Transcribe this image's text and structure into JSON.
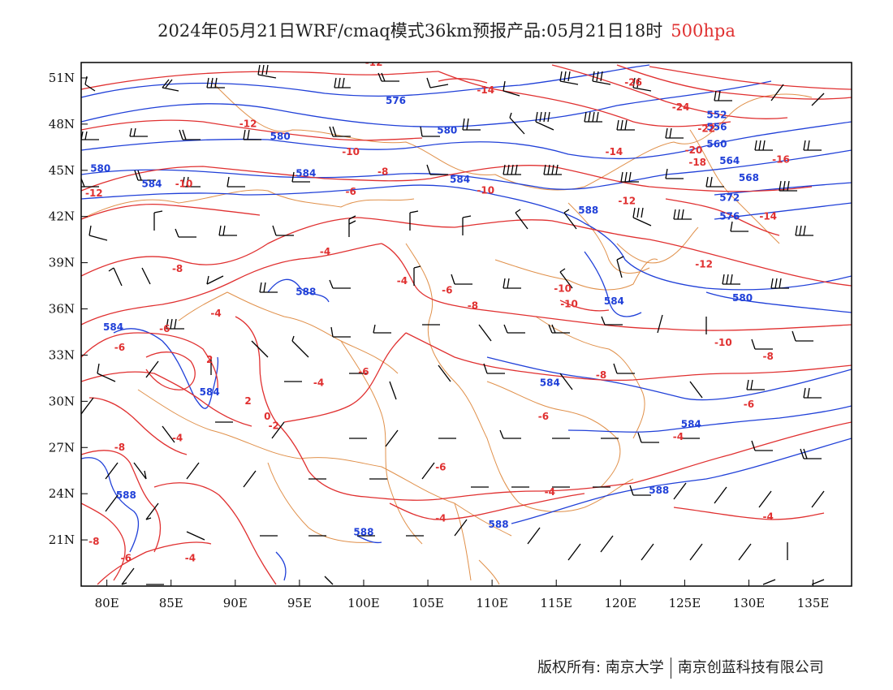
{
  "title": {
    "main": "2024年05月21日WRF/cmaq模式36km预报产品:05月21日18时",
    "level": "500hpa"
  },
  "colors": {
    "height_contour": "#2040d8",
    "temp_contour": "#e03030",
    "borders": "#e0904a",
    "wind_barb": "#000000"
  },
  "axes": {
    "x_ticks": [
      "80E",
      "85E",
      "90E",
      "95E",
      "100E",
      "105E",
      "110E",
      "115E",
      "120E",
      "125E",
      "130E",
      "135E"
    ],
    "y_ticks": [
      "51N",
      "48N",
      "45N",
      "42N",
      "39N",
      "36N",
      "33N",
      "30N",
      "27N",
      "24N",
      "21N"
    ],
    "lon_range": [
      78,
      138
    ],
    "lat_range": [
      18,
      52
    ]
  },
  "height_labels": [
    {
      "text": "576",
      "lon": 102.5,
      "lat": 49.3
    },
    {
      "text": "580",
      "lon": 106.5,
      "lat": 47.4
    },
    {
      "text": "580",
      "lon": 93.5,
      "lat": 47.0
    },
    {
      "text": "580",
      "lon": 79.5,
      "lat": 44.9
    },
    {
      "text": "584",
      "lon": 83.5,
      "lat": 43.9
    },
    {
      "text": "584",
      "lon": 95.5,
      "lat": 44.6
    },
    {
      "text": "584",
      "lon": 107.5,
      "lat": 44.2
    },
    {
      "text": "588",
      "lon": 95.5,
      "lat": 36.9
    },
    {
      "text": "584",
      "lon": 80.5,
      "lat": 34.6
    },
    {
      "text": "584",
      "lon": 88.0,
      "lat": 30.4
    },
    {
      "text": "588",
      "lon": 117.5,
      "lat": 42.2
    },
    {
      "text": "584",
      "lon": 119.5,
      "lat": 36.3
    },
    {
      "text": "584",
      "lon": 114.5,
      "lat": 31.0
    },
    {
      "text": "584",
      "lon": 125.5,
      "lat": 28.3
    },
    {
      "text": "588",
      "lon": 81.5,
      "lat": 23.7
    },
    {
      "text": "588",
      "lon": 100.0,
      "lat": 21.3
    },
    {
      "text": "588",
      "lon": 110.5,
      "lat": 21.8
    },
    {
      "text": "588",
      "lon": 123.0,
      "lat": 24.0
    },
    {
      "text": "580",
      "lon": 129.5,
      "lat": 36.5
    },
    {
      "text": "576",
      "lon": 128.5,
      "lat": 41.8
    },
    {
      "text": "572",
      "lon": 128.5,
      "lat": 43.0
    },
    {
      "text": "568",
      "lon": 130.0,
      "lat": 44.3
    },
    {
      "text": "564",
      "lon": 128.5,
      "lat": 45.4
    },
    {
      "text": "560",
      "lon": 127.5,
      "lat": 46.5
    },
    {
      "text": "556",
      "lon": 127.5,
      "lat": 47.6
    },
    {
      "text": "552",
      "lon": 127.5,
      "lat": 48.4
    }
  ],
  "temp_labels": [
    {
      "text": "-12",
      "lon": 100.8,
      "lat": 51.8
    },
    {
      "text": "-14",
      "lon": 109.5,
      "lat": 50.0
    },
    {
      "text": "-26",
      "lon": 121.0,
      "lat": 50.5
    },
    {
      "text": "-24",
      "lon": 124.7,
      "lat": 48.9
    },
    {
      "text": "-22",
      "lon": 126.7,
      "lat": 47.5
    },
    {
      "text": "-20",
      "lon": 125.7,
      "lat": 46.1
    },
    {
      "text": "-18",
      "lon": 126.0,
      "lat": 45.3
    },
    {
      "text": "-16",
      "lon": 132.5,
      "lat": 45.5
    },
    {
      "text": "-14",
      "lon": 119.5,
      "lat": 46.0
    },
    {
      "text": "-12",
      "lon": 91.0,
      "lat": 47.8
    },
    {
      "text": "-10",
      "lon": 99.0,
      "lat": 46.0
    },
    {
      "text": "-8",
      "lon": 101.5,
      "lat": 44.7
    },
    {
      "text": "-10",
      "lon": 86.0,
      "lat": 43.9
    },
    {
      "text": "-6",
      "lon": 99.0,
      "lat": 43.4
    },
    {
      "text": "-12",
      "lon": 79.0,
      "lat": 43.3
    },
    {
      "text": "-10",
      "lon": 109.5,
      "lat": 43.5
    },
    {
      "text": "-12",
      "lon": 120.5,
      "lat": 42.8
    },
    {
      "text": "-14",
      "lon": 131.5,
      "lat": 41.8
    },
    {
      "text": "-12",
      "lon": 126.5,
      "lat": 38.7
    },
    {
      "text": "-8",
      "lon": 85.5,
      "lat": 38.4
    },
    {
      "text": "-4",
      "lon": 97.0,
      "lat": 39.5
    },
    {
      "text": "-4",
      "lon": 103.0,
      "lat": 37.6
    },
    {
      "text": "-6",
      "lon": 106.5,
      "lat": 37.0
    },
    {
      "text": "-8",
      "lon": 108.5,
      "lat": 36.0
    },
    {
      "text": "-10",
      "lon": 115.5,
      "lat": 37.1
    },
    {
      "text": "-10",
      "lon": 116.0,
      "lat": 36.1
    },
    {
      "text": "-4",
      "lon": 88.5,
      "lat": 35.5
    },
    {
      "text": "-6",
      "lon": 84.5,
      "lat": 34.5
    },
    {
      "text": "-6",
      "lon": 81.0,
      "lat": 33.3
    },
    {
      "text": "2",
      "lon": 88.0,
      "lat": 32.5
    },
    {
      "text": "-10",
      "lon": 128.0,
      "lat": 33.6
    },
    {
      "text": "-8",
      "lon": 131.5,
      "lat": 32.7
    },
    {
      "text": "-8",
      "lon": 118.5,
      "lat": 31.5
    },
    {
      "text": "-6",
      "lon": 100.0,
      "lat": 31.7
    },
    {
      "text": "-4",
      "lon": 96.5,
      "lat": 31.0
    },
    {
      "text": "2",
      "lon": 91.0,
      "lat": 29.8
    },
    {
      "text": "0",
      "lon": 92.5,
      "lat": 28.8
    },
    {
      "text": "-2",
      "lon": 93.0,
      "lat": 28.2
    },
    {
      "text": "-6",
      "lon": 130.0,
      "lat": 29.6
    },
    {
      "text": "-6",
      "lon": 114.0,
      "lat": 28.8
    },
    {
      "text": "-4",
      "lon": 85.5,
      "lat": 27.4
    },
    {
      "text": "-4",
      "lon": 124.5,
      "lat": 27.5
    },
    {
      "text": "-8",
      "lon": 81.0,
      "lat": 26.8
    },
    {
      "text": "-6",
      "lon": 106.0,
      "lat": 25.5
    },
    {
      "text": "-4",
      "lon": 114.5,
      "lat": 23.9
    },
    {
      "text": "-4",
      "lon": 106.0,
      "lat": 22.2
    },
    {
      "text": "-4",
      "lon": 131.5,
      "lat": 22.3
    },
    {
      "text": "-8",
      "lon": 79.0,
      "lat": 20.7
    },
    {
      "text": "-6",
      "lon": 81.5,
      "lat": 19.6
    },
    {
      "text": "-4",
      "lon": 86.5,
      "lat": 19.6
    }
  ],
  "footer": {
    "copyright": "版权所有: 南京大学",
    "company": "南京创蓝科技有限公司"
  }
}
